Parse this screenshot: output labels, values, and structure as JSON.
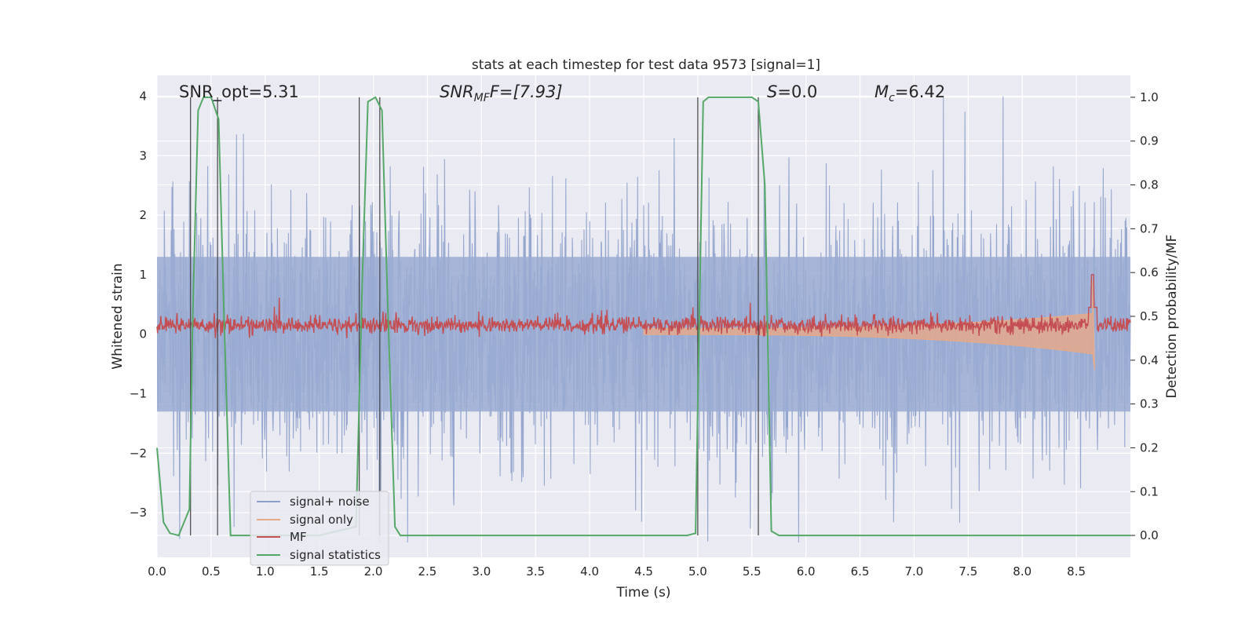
{
  "chart_data": {
    "type": "line",
    "title": "stats at each timestep for test data 9573 [signal=1]",
    "xlabel": "Time (s)",
    "ylabel": "Whitened strain",
    "ylabel_right": "Detection probability/MF",
    "xlim": [
      0.0,
      9.0
    ],
    "ylim": [
      -3.75,
      4.35
    ],
    "ylim_right": [
      -0.05,
      1.05
    ],
    "x_ticks": [
      "0.0",
      "0.5",
      "1.0",
      "1.5",
      "2.0",
      "2.5",
      "3.0",
      "3.5",
      "4.0",
      "4.5",
      "5.0",
      "5.5",
      "6.0",
      "6.5",
      "7.0",
      "7.5",
      "8.0",
      "8.5"
    ],
    "y_ticks": [
      "−3",
      "−2",
      "−1",
      "0",
      "1",
      "2",
      "3",
      "4"
    ],
    "y_right_ticks": [
      "0.0",
      "0.1",
      "0.2",
      "0.3",
      "0.4",
      "0.5",
      "0.6",
      "0.7",
      "0.8",
      "0.9",
      "1.0"
    ],
    "grid": true,
    "annotations": [
      {
        "text": "SNR_opt=5.31"
      },
      {
        "text_main": "SNR",
        "text_sub": "MF",
        "text_rest": "F=[7.93]"
      },
      {
        "text_main": "S",
        "text_rest": "=0.0"
      },
      {
        "text_main": "M",
        "text_sub": "c",
        "text_rest": "=6.42"
      }
    ],
    "legend": {
      "placement": "lower-left",
      "entries": [
        {
          "name": "signal+ noise",
          "color": "#8da0cb"
        },
        {
          "name": "signal only",
          "color": "#e8a987"
        },
        {
          "name": "MF",
          "color": "#c44e52"
        },
        {
          "name": "signal statistics",
          "color": "#55a868"
        }
      ]
    },
    "series": [
      {
        "name": "signal+ noise",
        "color": "#8da0cb",
        "description_level": "noise band approx -2.5 to 2.5 with peaks to 4.0 and -3.5"
      },
      {
        "name": "signal only",
        "color": "#e8a987",
        "chirp_end": 8.65,
        "chirp_peak": 0.9,
        "chirp_trough": -0.6
      },
      {
        "name": "MF",
        "color": "#c44e52",
        "baseline": 0.15,
        "peak_x": 8.65,
        "peak_y": 1.0
      },
      {
        "name": "signal statistics",
        "color": "#55a868",
        "x": [
          0.0,
          0.06,
          0.12,
          0.2,
          0.3,
          0.33,
          0.38,
          0.43,
          0.5,
          0.57,
          0.62,
          0.68,
          0.72,
          0.85,
          1.0,
          1.5,
          1.84,
          1.9,
          1.95,
          2.02,
          2.08,
          2.13,
          2.2,
          2.25,
          3.0,
          4.0,
          4.9,
          4.98,
          5.0,
          5.05,
          5.1,
          5.5,
          5.56,
          5.62,
          5.68,
          5.75,
          6.0,
          7.0,
          8.0,
          9.0
        ],
        "y": [
          0.2,
          0.03,
          0.005,
          0.0,
          0.06,
          0.5,
          0.97,
          1.0,
          1.0,
          0.95,
          0.5,
          0.0,
          0.0,
          0.0,
          0.0,
          0.0,
          0.02,
          0.6,
          0.99,
          1.0,
          0.97,
          0.55,
          0.02,
          0.0,
          0.0,
          0.0,
          0.0,
          0.005,
          0.3,
          0.99,
          1.0,
          1.0,
          0.99,
          0.8,
          0.01,
          0.0,
          0.0,
          0.0,
          0.0,
          0.0
        ]
      }
    ],
    "vertical_markers_x": [
      0.31,
      0.56,
      1.87,
      2.06,
      5.0,
      5.56
    ]
  }
}
